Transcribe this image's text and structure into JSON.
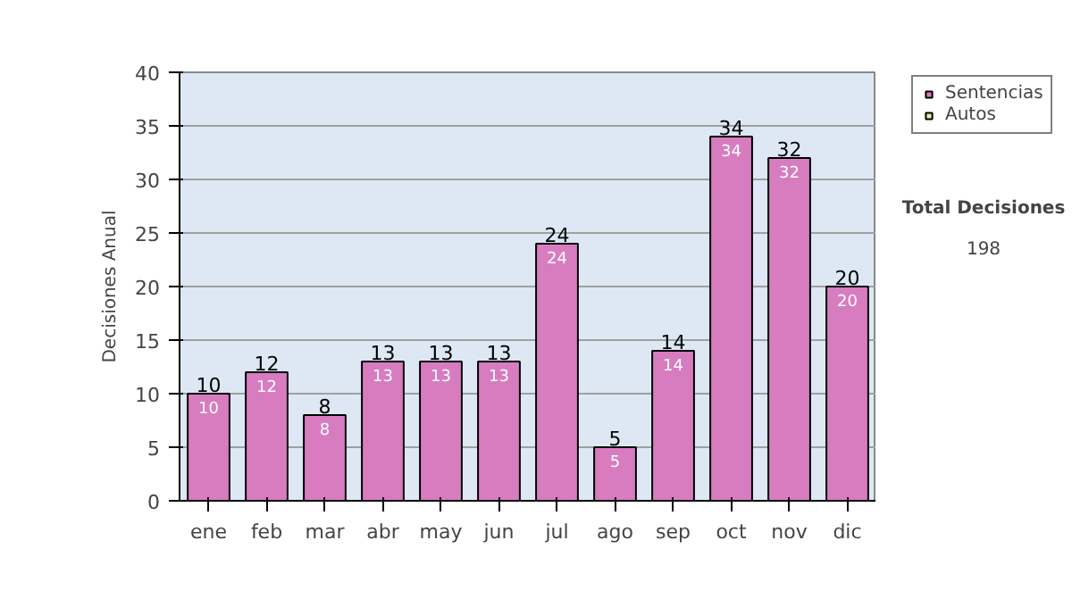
{
  "chart_data": {
    "type": "bar",
    "ylabel": "Decisiones Anual",
    "categories": [
      "ene",
      "feb",
      "mar",
      "abr",
      "may",
      "jun",
      "jul",
      "ago",
      "sep",
      "oct",
      "nov",
      "dic"
    ],
    "series": [
      {
        "name": "Sentencias",
        "color": "#d87cc0",
        "values": [
          10,
          12,
          8,
          13,
          13,
          13,
          24,
          5,
          14,
          34,
          32,
          20
        ]
      },
      {
        "name": "Autos",
        "color": "#e8f0a0",
        "values": [
          null,
          null,
          null,
          null,
          null,
          null,
          null,
          null,
          null,
          null,
          null,
          null
        ]
      }
    ],
    "stacked": true,
    "data_labels": true,
    "totals": [
      "10",
      "12",
      "8",
      "13",
      "13",
      "13",
      "24",
      "5",
      "14",
      "34",
      "32",
      "20"
    ],
    "ylim": [
      0,
      40
    ],
    "yticks": [
      0,
      5,
      10,
      15,
      20,
      25,
      30,
      35,
      40
    ],
    "grid": "y",
    "legend": "right",
    "annotations": [
      "Total Decisiones",
      "198"
    ]
  }
}
